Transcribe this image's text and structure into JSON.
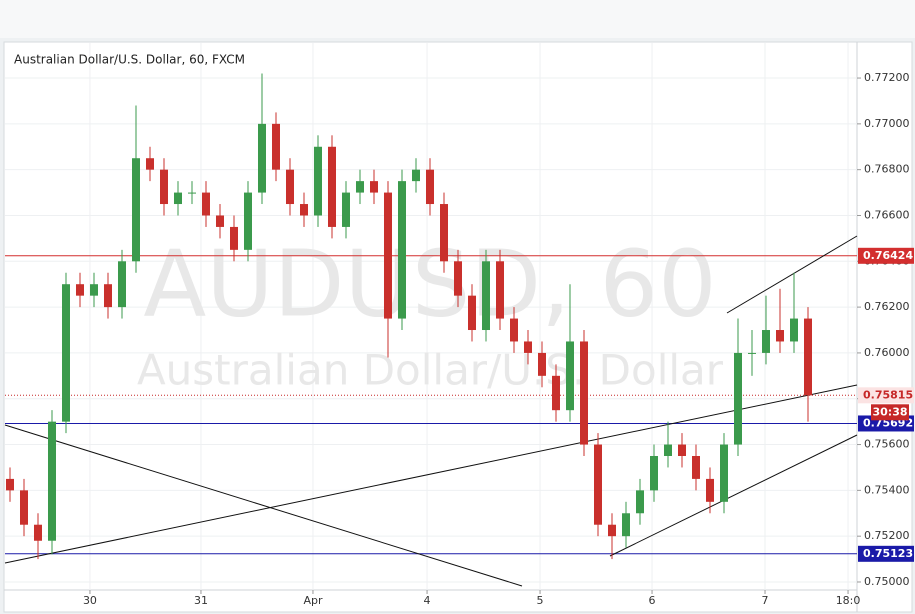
{
  "chart_data": {
    "type": "candlestick",
    "title": "Australian Dollar/U.S. Dollar, 60, FXCM",
    "watermark": "AUDUSD, 60",
    "watermark_subtitle": "Australian Dollar/U.S. Dollar",
    "up_color": "#3b9a4c",
    "down_color": "#c9302c",
    "open": [
      0.7545,
      0.754,
      0.7525,
      0.7518,
      0.757,
      0.763,
      0.7625,
      0.763,
      0.762,
      0.764,
      0.7685,
      0.768,
      0.7665,
      0.767,
      0.767,
      0.766,
      0.7655,
      0.7645,
      0.767,
      0.77,
      0.768,
      0.7665,
      0.766,
      0.769,
      0.7655,
      0.767,
      0.7675,
      0.767,
      0.7615,
      0.7675,
      0.768,
      0.7665,
      0.764,
      0.7625,
      0.761,
      0.764,
      0.7615,
      0.7605,
      0.76,
      0.759,
      0.7575,
      0.7605,
      0.756,
      0.7525,
      0.752,
      0.753,
      0.754,
      0.7555,
      0.756,
      0.7555,
      0.7545,
      0.7535,
      0.756,
      0.76,
      0.76,
      0.761,
      0.7605,
      0.7615
    ],
    "high": [
      0.755,
      0.7545,
      0.753,
      0.7575,
      0.7635,
      0.7635,
      0.7635,
      0.7635,
      0.7645,
      0.7708,
      0.769,
      0.7685,
      0.7675,
      0.7675,
      0.7675,
      0.7665,
      0.766,
      0.7675,
      0.7722,
      0.7705,
      0.7685,
      0.767,
      0.7695,
      0.7695,
      0.7675,
      0.768,
      0.768,
      0.7675,
      0.768,
      0.7685,
      0.7685,
      0.767,
      0.7645,
      0.763,
      0.7645,
      0.7645,
      0.762,
      0.761,
      0.7605,
      0.7595,
      0.763,
      0.761,
      0.7565,
      0.753,
      0.7535,
      0.7545,
      0.756,
      0.757,
      0.7565,
      0.756,
      0.755,
      0.7565,
      0.7615,
      0.761,
      0.7625,
      0.7628,
      0.7635,
      0.762
    ],
    "low": [
      0.7535,
      0.752,
      0.751,
      0.7512,
      0.7565,
      0.762,
      0.762,
      0.7615,
      0.7615,
      0.7635,
      0.7675,
      0.766,
      0.766,
      0.7665,
      0.7655,
      0.765,
      0.764,
      0.764,
      0.7665,
      0.7675,
      0.766,
      0.7655,
      0.7655,
      0.765,
      0.765,
      0.7665,
      0.7665,
      0.7598,
      0.761,
      0.767,
      0.766,
      0.7635,
      0.762,
      0.7605,
      0.7605,
      0.761,
      0.76,
      0.7595,
      0.7585,
      0.757,
      0.757,
      0.7555,
      0.752,
      0.751,
      0.7515,
      0.7525,
      0.7535,
      0.755,
      0.755,
      0.754,
      0.753,
      0.753,
      0.7555,
      0.759,
      0.7595,
      0.76,
      0.76,
      0.757
    ],
    "close": [
      0.754,
      0.7525,
      0.7518,
      0.757,
      0.763,
      0.7625,
      0.763,
      0.762,
      0.764,
      0.7685,
      0.768,
      0.7665,
      0.767,
      0.767,
      0.766,
      0.7655,
      0.7645,
      0.767,
      0.77,
      0.768,
      0.7665,
      0.766,
      0.769,
      0.7655,
      0.767,
      0.7675,
      0.767,
      0.7615,
      0.7675,
      0.768,
      0.7665,
      0.764,
      0.7625,
      0.761,
      0.764,
      0.7615,
      0.7605,
      0.76,
      0.759,
      0.7575,
      0.7605,
      0.756,
      0.7525,
      0.752,
      0.753,
      0.754,
      0.7555,
      0.756,
      0.7555,
      0.7545,
      0.7535,
      0.756,
      0.76,
      0.76,
      0.761,
      0.7605,
      0.7615,
      0.75815
    ],
    "xlim": [
      -0.357,
      60.5
    ],
    "xticks": [
      {
        "value": 5.71,
        "label": "30"
      },
      {
        "value": 13.64,
        "label": "31"
      },
      {
        "value": 21.64,
        "label": "Apr"
      },
      {
        "value": 29.79,
        "label": "4"
      },
      {
        "value": 37.86,
        "label": "5"
      },
      {
        "value": 45.86,
        "label": "6"
      },
      {
        "value": 53.93,
        "label": "7"
      },
      {
        "value": 59.86,
        "label": "18:0"
      }
    ],
    "ylim": [
      0.74965,
      0.77353
    ],
    "yticks": [
      {
        "value": 0.75,
        "label": "0.75000"
      },
      {
        "value": 0.752,
        "label": "0.75200"
      },
      {
        "value": 0.754,
        "label": "0.75400"
      },
      {
        "value": 0.756,
        "label": "0.75600"
      },
      {
        "value": 0.758,
        "label": "0.75800"
      },
      {
        "value": 0.76,
        "label": "0.76000"
      },
      {
        "value": 0.762,
        "label": "0.76200"
      },
      {
        "value": 0.764,
        "label": "0.76400"
      },
      {
        "value": 0.766,
        "label": "0.76600"
      },
      {
        "value": 0.768,
        "label": "0.76800"
      },
      {
        "value": 0.77,
        "label": "0.77000"
      },
      {
        "value": 0.772,
        "label": "0.77200"
      }
    ],
    "grid": true,
    "levels": [
      {
        "value": 0.76424,
        "color": "#d32f2f"
      },
      {
        "value": 0.75692,
        "color": "#1a1aa8"
      },
      {
        "value": 0.75123,
        "color": "#1a1aa8"
      }
    ],
    "last_price": 0.75815,
    "last_price_color": "#c62828",
    "countdown": "30:38"
  }
}
